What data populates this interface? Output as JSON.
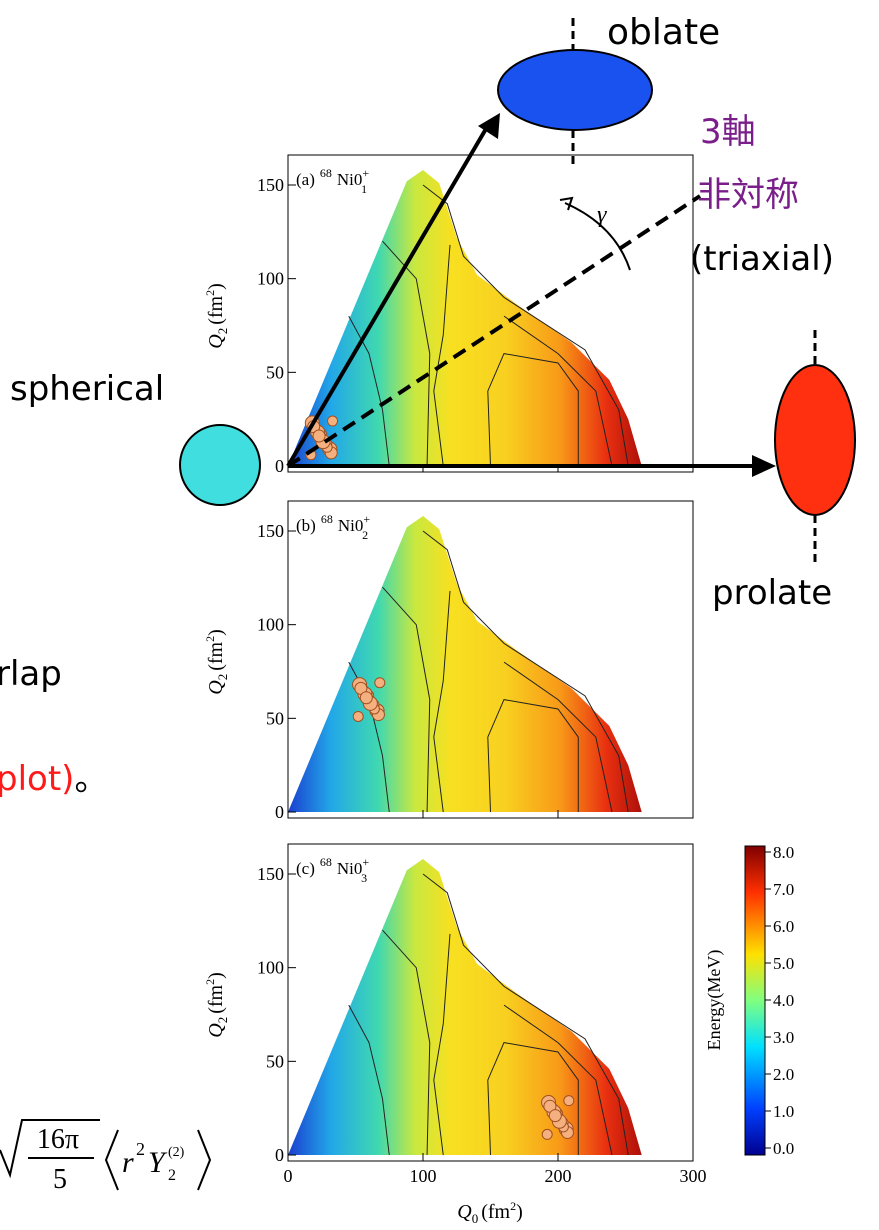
{
  "annotations": {
    "oblate": "oblate",
    "triaxial_ja_1": "3軸",
    "triaxial_ja_2": "非対称",
    "triaxial_en": "(triaxial)",
    "spherical": "spherical",
    "prolate": "prolate",
    "gamma": "γ"
  },
  "left_text": {
    "fragment_1": "rlap",
    "fragment_2": "plot)",
    "fragment_2_suffix": "。"
  },
  "formula": {
    "numerator": "16π",
    "denominator": "5",
    "r": "r",
    "r_power": "2",
    "y": "Y",
    "y_sub": "2",
    "y_sup": "(2)"
  },
  "panels": [
    {
      "label": "(a)",
      "mass": "68",
      "element": "Ni",
      "state": "0",
      "state_sub": "1",
      "state_sup": "+"
    },
    {
      "label": "(b)",
      "mass": "68",
      "element": "Ni",
      "state": "0",
      "state_sub": "2",
      "state_sup": "+"
    },
    {
      "label": "(c)",
      "mass": "68",
      "element": "Ni",
      "state": "0",
      "state_sub": "3",
      "state_sup": "+"
    }
  ],
  "y_axis": {
    "ticks": [
      "150",
      "100",
      "50",
      "0"
    ],
    "label": "Q",
    "label_sub": "2",
    "unit_open": "(fm",
    "unit_sup": "2",
    "unit_close": ")"
  },
  "x_axis": {
    "ticks": [
      "0",
      "100",
      "200",
      "300"
    ],
    "label": "Q",
    "label_sub": "0",
    "unit_open": "(fm",
    "unit_sup": "2",
    "unit_close": ")"
  },
  "colorbar": {
    "ticks": [
      "8.0",
      "7.0",
      "6.0",
      "5.0",
      "4.0",
      "3.0",
      "2.0",
      "1.0",
      "0.0"
    ],
    "label": "Energy(MeV)"
  }
}
